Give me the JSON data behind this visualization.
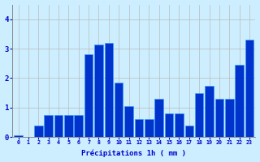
{
  "hours": [
    0,
    1,
    2,
    3,
    4,
    5,
    6,
    7,
    8,
    9,
    10,
    11,
    12,
    13,
    14,
    15,
    16,
    17,
    18,
    19,
    20,
    21,
    22,
    23
  ],
  "values": [
    0.05,
    0.0,
    0.4,
    0.75,
    0.75,
    0.75,
    0.75,
    2.8,
    3.15,
    3.2,
    1.85,
    1.05,
    0.6,
    0.6,
    1.3,
    0.8,
    0.8,
    0.4,
    1.5,
    1.75,
    1.3,
    1.3,
    2.45,
    3.3
  ],
  "bar_color": "#0033cc",
  "bar_edge_color": "#3399ff",
  "background_color": "#cceeff",
  "grid_color": "#bbbbbb",
  "xlabel": "Précipitations 1h ( mm )",
  "ylim": [
    0,
    4.5
  ],
  "yticks": [
    0,
    1,
    2,
    3,
    4
  ],
  "tick_color": "#0000cc"
}
